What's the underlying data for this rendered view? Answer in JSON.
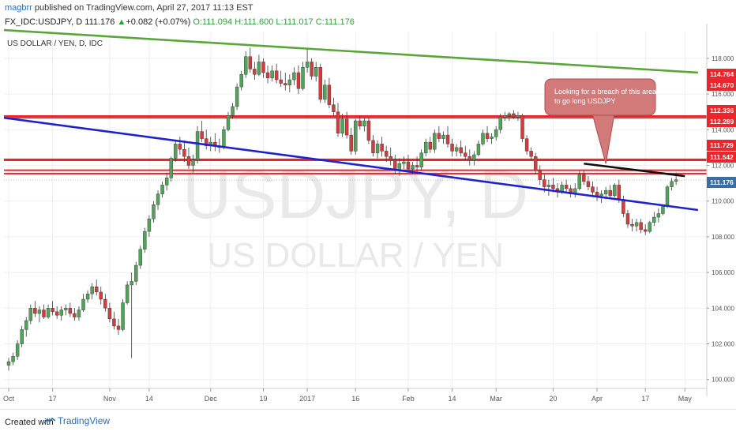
{
  "header": {
    "author": "magbrr",
    "published": "published on TradingView.com, April 27, 2017 11:13 EST",
    "symbol": "FX_IDC:USDJPY, D",
    "last": "111.176",
    "change": "+0.082 (+0.07%)",
    "ohlc": "O:111.094 H:111.600 L:111.017 C:111.176"
  },
  "footer": {
    "created_with": "Created with",
    "brand": "TradingView"
  },
  "chart_data": {
    "type": "candlestick",
    "title": "US DOLLAR / YEN, D, IDC",
    "watermark_symbol": "USDJPY, D",
    "watermark_name": "US DOLLAR / YEN",
    "ylim": [
      99.5,
      119.5
    ],
    "y_ticks": [
      100,
      102,
      104,
      106,
      108,
      110,
      112,
      114,
      116,
      118
    ],
    "x_ticks": [
      {
        "label": "Oct",
        "i": 0
      },
      {
        "label": "17",
        "i": 10
      },
      {
        "label": "Nov",
        "i": 23
      },
      {
        "label": "14",
        "i": 32
      },
      {
        "label": "Dec",
        "i": 46
      },
      {
        "label": "19",
        "i": 58
      },
      {
        "label": "2017",
        "i": 68
      },
      {
        "label": "16",
        "i": 79
      },
      {
        "label": "Feb",
        "i": 91
      },
      {
        "label": "14",
        "i": 101
      },
      {
        "label": "Mar",
        "i": 111
      },
      {
        "label": "20",
        "i": 124
      },
      {
        "label": "Apr",
        "i": 134
      },
      {
        "label": "17",
        "i": 145
      },
      {
        "label": "May",
        "i": 154
      }
    ],
    "price_labels": [
      {
        "value": 114.764,
        "text": "114.764",
        "color": "#e8262c"
      },
      {
        "value": 114.67,
        "text": "114.670",
        "color": "#e8262c"
      },
      {
        "value": 112.336,
        "text": "112.336",
        "color": "#e8262c"
      },
      {
        "value": 112.289,
        "text": "112.289",
        "color": "#e8262c"
      },
      {
        "value": 111.729,
        "text": "111.729",
        "color": "#e8262c"
      },
      {
        "value": 111.542,
        "text": "111.542",
        "color": "#e8262c"
      },
      {
        "value": 111.176,
        "text": "111.176",
        "color": "#3c6f9e"
      }
    ],
    "horizontal_lines": [
      {
        "value": 114.67,
        "color": "#e8262c"
      },
      {
        "value": 114.764,
        "color": "#e8262c"
      },
      {
        "value": 112.289,
        "color": "#e8262c"
      },
      {
        "value": 112.336,
        "color": "#e8262c"
      },
      {
        "value": 111.542,
        "color": "#e8262c"
      },
      {
        "value": 111.729,
        "color": "#e8262c"
      }
    ],
    "trend_lines": [
      {
        "color": "#5aa63a",
        "from": {
          "i": -2,
          "v": 119.6
        },
        "to": {
          "i": 157,
          "v": 117.2
        }
      },
      {
        "color": "#1f23c9",
        "from": {
          "i": -2,
          "v": 114.7
        },
        "to": {
          "i": 157,
          "v": 109.5
        }
      },
      {
        "color": "#111111",
        "from": {
          "i": 131,
          "v": 112.1
        },
        "to": {
          "i": 154,
          "v": 111.4
        }
      }
    ],
    "annotation": {
      "text_line1": "Looking for a breach of this area",
      "text_line2": "to go long USDJPY",
      "pointer": {
        "i": 136,
        "v": 112.1
      }
    },
    "candles": [
      [
        100.8,
        101.2,
        100.5,
        101.0
      ],
      [
        101.0,
        101.5,
        100.8,
        101.3
      ],
      [
        101.3,
        102.2,
        101.1,
        102.0
      ],
      [
        102.0,
        103.0,
        101.8,
        102.8
      ],
      [
        102.8,
        103.5,
        102.4,
        103.3
      ],
      [
        103.3,
        104.2,
        103.1,
        104.0
      ],
      [
        104.0,
        104.4,
        103.5,
        103.7
      ],
      [
        103.7,
        104.1,
        103.2,
        103.9
      ],
      [
        103.9,
        104.2,
        103.4,
        103.5
      ],
      [
        103.5,
        104.2,
        103.4,
        104.0
      ],
      [
        104.0,
        104.4,
        103.6,
        103.8
      ],
      [
        103.8,
        104.1,
        103.4,
        103.6
      ],
      [
        103.6,
        104.1,
        103.3,
        103.9
      ],
      [
        103.9,
        104.2,
        103.6,
        104.0
      ],
      [
        104.0,
        104.3,
        103.5,
        103.7
      ],
      [
        103.7,
        104.0,
        103.3,
        103.5
      ],
      [
        103.5,
        104.1,
        103.3,
        103.9
      ],
      [
        103.9,
        104.8,
        103.8,
        104.5
      ],
      [
        104.5,
        105.0,
        104.3,
        104.8
      ],
      [
        104.8,
        105.4,
        104.5,
        105.2
      ],
      [
        105.2,
        105.6,
        104.7,
        104.9
      ],
      [
        104.9,
        105.2,
        104.2,
        104.5
      ],
      [
        104.5,
        104.8,
        103.8,
        104.0
      ],
      [
        104.0,
        104.3,
        103.2,
        103.4
      ],
      [
        103.4,
        103.8,
        102.8,
        103.0
      ],
      [
        103.0,
        103.4,
        102.5,
        102.8
      ],
      [
        102.8,
        104.5,
        102.7,
        104.3
      ],
      [
        104.3,
        105.5,
        104.2,
        105.3
      ],
      [
        105.3,
        106.0,
        101.2,
        105.5
      ],
      [
        105.5,
        106.6,
        105.3,
        106.4
      ],
      [
        106.4,
        107.5,
        106.2,
        107.3
      ],
      [
        107.3,
        108.5,
        107.1,
        108.3
      ],
      [
        108.3,
        109.2,
        108.0,
        109.0
      ],
      [
        109.0,
        110.0,
        108.8,
        109.8
      ],
      [
        109.8,
        110.6,
        109.5,
        110.4
      ],
      [
        110.4,
        111.1,
        110.2,
        110.9
      ],
      [
        110.9,
        111.6,
        110.6,
        111.3
      ],
      [
        111.3,
        112.5,
        111.1,
        112.4
      ],
      [
        112.4,
        113.4,
        112.2,
        113.2
      ],
      [
        113.2,
        113.6,
        112.6,
        112.9
      ],
      [
        112.9,
        113.4,
        112.2,
        112.5
      ],
      [
        112.5,
        113.0,
        111.8,
        112.0
      ],
      [
        112.0,
        112.6,
        111.6,
        112.3
      ],
      [
        112.3,
        114.2,
        112.1,
        113.9
      ],
      [
        113.9,
        114.5,
        113.3,
        113.5
      ],
      [
        113.5,
        114.0,
        112.9,
        113.1
      ],
      [
        113.1,
        113.6,
        112.8,
        113.3
      ],
      [
        113.3,
        113.8,
        112.8,
        113.1
      ],
      [
        113.1,
        113.5,
        112.7,
        113.0
      ],
      [
        113.0,
        114.2,
        112.9,
        114.0
      ],
      [
        114.0,
        115.0,
        113.9,
        114.8
      ],
      [
        114.8,
        115.5,
        114.6,
        115.3
      ],
      [
        115.3,
        116.6,
        115.1,
        116.4
      ],
      [
        116.4,
        117.3,
        116.2,
        117.1
      ],
      [
        117.1,
        118.4,
        116.9,
        118.1
      ],
      [
        118.1,
        118.6,
        117.2,
        117.4
      ],
      [
        117.4,
        117.8,
        116.8,
        117.1
      ],
      [
        117.1,
        118.2,
        117.0,
        117.8
      ],
      [
        117.8,
        118.0,
        116.9,
        117.2
      ],
      [
        117.2,
        117.6,
        116.6,
        116.9
      ],
      [
        116.9,
        117.6,
        116.7,
        117.3
      ],
      [
        117.3,
        117.7,
        116.6,
        116.8
      ],
      [
        116.8,
        117.3,
        116.4,
        116.6
      ],
      [
        116.6,
        117.2,
        116.2,
        116.5
      ],
      [
        116.5,
        117.1,
        116.1,
        116.8
      ],
      [
        116.8,
        117.5,
        116.5,
        117.2
      ],
      [
        117.2,
        117.6,
        116.0,
        116.3
      ],
      [
        116.3,
        117.8,
        116.2,
        117.5
      ],
      [
        117.5,
        118.6,
        117.2,
        117.8
      ],
      [
        117.8,
        118.0,
        116.8,
        117.0
      ],
      [
        117.0,
        117.8,
        116.7,
        117.5
      ],
      [
        117.5,
        117.7,
        115.5,
        115.7
      ],
      [
        115.7,
        116.8,
        115.5,
        116.5
      ],
      [
        116.5,
        116.9,
        115.2,
        115.4
      ],
      [
        115.4,
        115.8,
        114.8,
        115.0
      ],
      [
        115.0,
        115.5,
        113.6,
        113.8
      ],
      [
        113.8,
        114.9,
        113.6,
        114.6
      ],
      [
        114.6,
        115.0,
        113.5,
        113.7
      ],
      [
        113.7,
        114.1,
        112.6,
        112.8
      ],
      [
        112.8,
        114.6,
        112.6,
        114.5
      ],
      [
        114.5,
        114.8,
        114.0,
        114.2
      ],
      [
        114.2,
        114.7,
        113.9,
        114.5
      ],
      [
        114.5,
        114.7,
        113.2,
        113.4
      ],
      [
        113.4,
        113.7,
        112.5,
        112.7
      ],
      [
        112.7,
        113.4,
        112.4,
        113.2
      ],
      [
        113.2,
        113.6,
        112.5,
        112.8
      ],
      [
        112.8,
        113.1,
        112.2,
        112.5
      ],
      [
        112.5,
        113.0,
        112.0,
        112.3
      ],
      [
        112.3,
        112.6,
        111.5,
        111.7
      ],
      [
        111.7,
        112.4,
        111.4,
        112.1
      ],
      [
        112.1,
        112.5,
        111.8,
        112.2
      ],
      [
        112.2,
        112.6,
        111.6,
        111.8
      ],
      [
        111.8,
        112.2,
        111.5,
        112.0
      ],
      [
        112.0,
        112.5,
        111.6,
        111.9
      ],
      [
        111.9,
        112.9,
        111.7,
        112.7
      ],
      [
        112.7,
        113.5,
        112.5,
        113.3
      ],
      [
        113.3,
        113.6,
        112.7,
        112.9
      ],
      [
        112.9,
        114.0,
        112.7,
        113.8
      ],
      [
        113.8,
        114.2,
        113.3,
        113.5
      ],
      [
        113.5,
        113.9,
        113.2,
        113.7
      ],
      [
        113.7,
        114.2,
        113.0,
        113.2
      ],
      [
        113.2,
        113.5,
        112.5,
        112.8
      ],
      [
        112.8,
        113.2,
        112.5,
        113.0
      ],
      [
        113.0,
        113.4,
        112.5,
        112.7
      ],
      [
        112.7,
        113.1,
        112.3,
        112.5
      ],
      [
        112.5,
        112.9,
        112.0,
        112.3
      ],
      [
        112.3,
        112.8,
        112.0,
        112.6
      ],
      [
        112.6,
        113.4,
        112.5,
        113.2
      ],
      [
        113.2,
        114.0,
        113.1,
        113.8
      ],
      [
        113.8,
        114.2,
        113.3,
        113.5
      ],
      [
        113.5,
        113.8,
        113.2,
        113.6
      ],
      [
        113.6,
        114.2,
        113.4,
        114.0
      ],
      [
        114.0,
        114.9,
        113.8,
        114.7
      ],
      [
        114.7,
        115.0,
        114.5,
        114.8
      ],
      [
        114.8,
        115.0,
        114.5,
        114.9
      ],
      [
        114.9,
        115.1,
        114.6,
        114.7
      ],
      [
        114.7,
        115.0,
        114.5,
        114.8
      ],
      [
        114.8,
        114.9,
        113.3,
        113.5
      ],
      [
        113.5,
        113.7,
        112.6,
        112.8
      ],
      [
        112.8,
        113.0,
        112.3,
        112.5
      ],
      [
        112.5,
        112.7,
        111.5,
        111.7
      ],
      [
        111.7,
        112.0,
        110.9,
        111.2
      ],
      [
        111.2,
        111.5,
        110.5,
        110.8
      ],
      [
        110.8,
        111.2,
        110.3,
        110.9
      ],
      [
        110.9,
        111.3,
        110.5,
        110.7
      ],
      [
        110.7,
        111.0,
        110.2,
        110.5
      ],
      [
        110.5,
        111.1,
        110.4,
        110.9
      ],
      [
        110.9,
        111.2,
        110.5,
        110.7
      ],
      [
        110.7,
        110.9,
        110.2,
        110.4
      ],
      [
        110.4,
        111.0,
        110.2,
        110.7
      ],
      [
        110.7,
        111.7,
        110.6,
        111.5
      ],
      [
        111.5,
        111.7,
        110.9,
        111.1
      ],
      [
        111.1,
        111.4,
        110.6,
        110.8
      ],
      [
        110.8,
        111.1,
        110.2,
        110.5
      ],
      [
        110.5,
        110.8,
        110.0,
        110.3
      ],
      [
        110.3,
        110.6,
        109.9,
        110.4
      ],
      [
        110.4,
        110.8,
        110.1,
        110.6
      ],
      [
        110.6,
        110.9,
        110.1,
        110.3
      ],
      [
        110.3,
        111.0,
        110.2,
        110.9
      ],
      [
        110.9,
        111.2,
        109.9,
        110.1
      ],
      [
        110.1,
        110.3,
        109.1,
        109.3
      ],
      [
        109.3,
        109.5,
        108.5,
        108.7
      ],
      [
        108.7,
        109.0,
        108.3,
        108.6
      ],
      [
        108.6,
        109.0,
        108.3,
        108.8
      ],
      [
        108.8,
        109.0,
        108.2,
        108.4
      ],
      [
        108.4,
        108.7,
        108.1,
        108.3
      ],
      [
        108.3,
        108.9,
        108.2,
        108.8
      ],
      [
        108.8,
        109.4,
        108.6,
        109.1
      ],
      [
        109.1,
        109.6,
        108.8,
        109.3
      ],
      [
        109.3,
        109.8,
        109.2,
        109.7
      ],
      [
        109.7,
        110.9,
        109.6,
        110.8
      ],
      [
        110.8,
        111.3,
        110.6,
        111.1
      ],
      [
        111.1,
        111.6,
        110.9,
        111.2
      ]
    ]
  }
}
